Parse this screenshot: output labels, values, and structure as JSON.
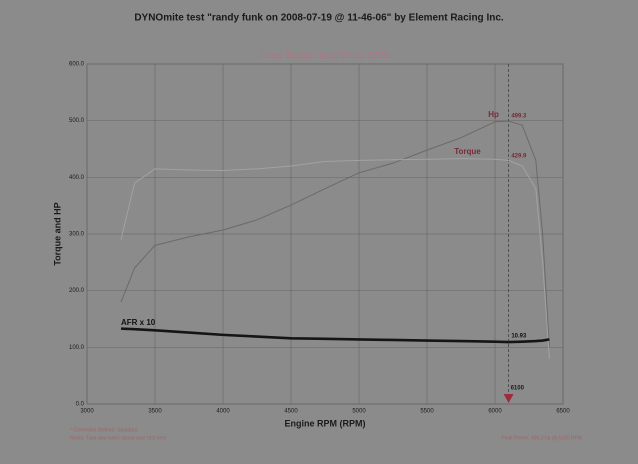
{
  "chart_data": {
    "type": "line",
    "title": "DYNOmite test \"randy funk on 2008-07-19 @ 11-46-06\" by Element Racing Inc.",
    "subtitle": "Peak Torque* and Hp* vs. RPM",
    "x_label": "Engine RPM (RPM)",
    "y_label": "Torque and HP",
    "x": [
      3250,
      3350,
      3500,
      3750,
      4000,
      4250,
      4500,
      4750,
      5000,
      5250,
      5500,
      5750,
      6000,
      6100,
      6200,
      6300,
      6350,
      6400
    ],
    "series": [
      {
        "name": "Hp",
        "color": "#6a6a6a",
        "values": [
          180,
          240,
          280,
          295,
          307,
          325,
          351,
          380,
          408,
          425,
          448,
          470,
          498,
          499.3,
          492,
          430,
          300,
          100
        ]
      },
      {
        "name": "Torque",
        "color": "#a2a2a2",
        "values": [
          290,
          390,
          415,
          413,
          412,
          415,
          420,
          428,
          430,
          431,
          432,
          433,
          432,
          429.9,
          420,
          380,
          250,
          80
        ]
      },
      {
        "name": "AFR x 10",
        "color": "#151515",
        "values": [
          133,
          132,
          130,
          126,
          122,
          119,
          116,
          115,
          114,
          113,
          112,
          111,
          110,
          109.3,
          110,
          111,
          112,
          114
        ]
      }
    ],
    "value_labels": [
      "499.3",
      "429.9",
      "10.93"
    ],
    "peak_rpm": 6100,
    "xlim": [
      3000,
      6500
    ],
    "ylim": [
      0,
      600
    ],
    "xticks": [
      3000,
      3500,
      4000,
      4500,
      5000,
      5500,
      6000,
      6500
    ],
    "yticks": [
      {
        "value": 0,
        "label": "0.0"
      },
      {
        "value": 100,
        "label": "100.0"
      },
      {
        "value": 200,
        "label": "200.0"
      },
      {
        "value": 300,
        "label": "300.0"
      },
      {
        "value": 400,
        "label": "400.0"
      },
      {
        "value": 500,
        "label": "500.0"
      },
      {
        "value": 600,
        "label": "600.0"
      }
    ],
    "grid": true,
    "footnotes": [
      "* Correction Method: Standard",
      "Notes: Type any notes above your test here"
    ],
    "peak_note": "Peak Power: 499.3 hp @ 6100 RPM"
  }
}
